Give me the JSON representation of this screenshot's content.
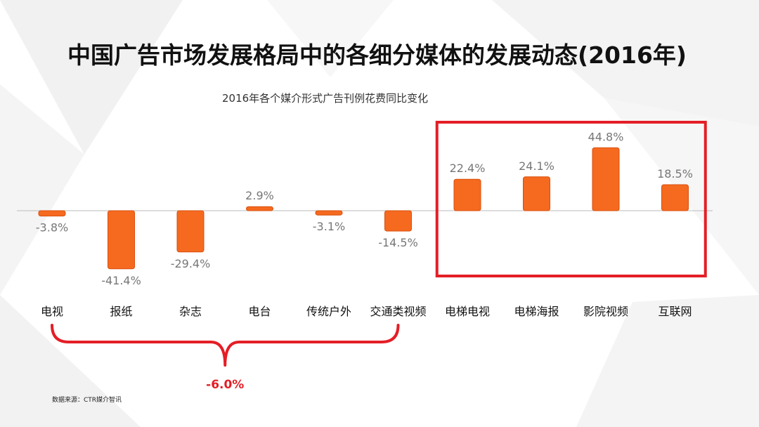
{
  "title": "中国广告市场发展格局中的各细分媒体的发展动态(2016年)",
  "source": "数据来源：CTR媒介智讯",
  "colors": {
    "bar": "#f56a1f",
    "bar_stroke": "#d94f0c",
    "highlight": "#e41e26",
    "axis": "#bbbbbb"
  },
  "chart_data": {
    "type": "bar",
    "title": "2016年各个媒介形式广告刊例花费同比变化",
    "categories": [
      "电视",
      "报纸",
      "杂志",
      "电台",
      "传统户外",
      "交通类视频",
      "电梯电视",
      "电梯海报",
      "影院视频",
      "互联网"
    ],
    "values": [
      -3.8,
      -41.4,
      -29.4,
      2.9,
      -3.1,
      -14.5,
      22.4,
      24.1,
      44.8,
      18.5
    ],
    "value_labels": [
      "-3.8%",
      "-41.4%",
      "-29.4%",
      "2.9%",
      "-3.1%",
      "-14.5%",
      "22.4%",
      "24.1%",
      "44.8%",
      "18.5%"
    ],
    "grid": false,
    "highlighted_categories": [
      "电梯电视",
      "电梯海报",
      "影院视频",
      "互联网"
    ],
    "bracket_group": [
      "电视",
      "报纸",
      "杂志",
      "电台",
      "传统户外",
      "交通类视频"
    ],
    "bracket_total_label": "-6.0%"
  }
}
